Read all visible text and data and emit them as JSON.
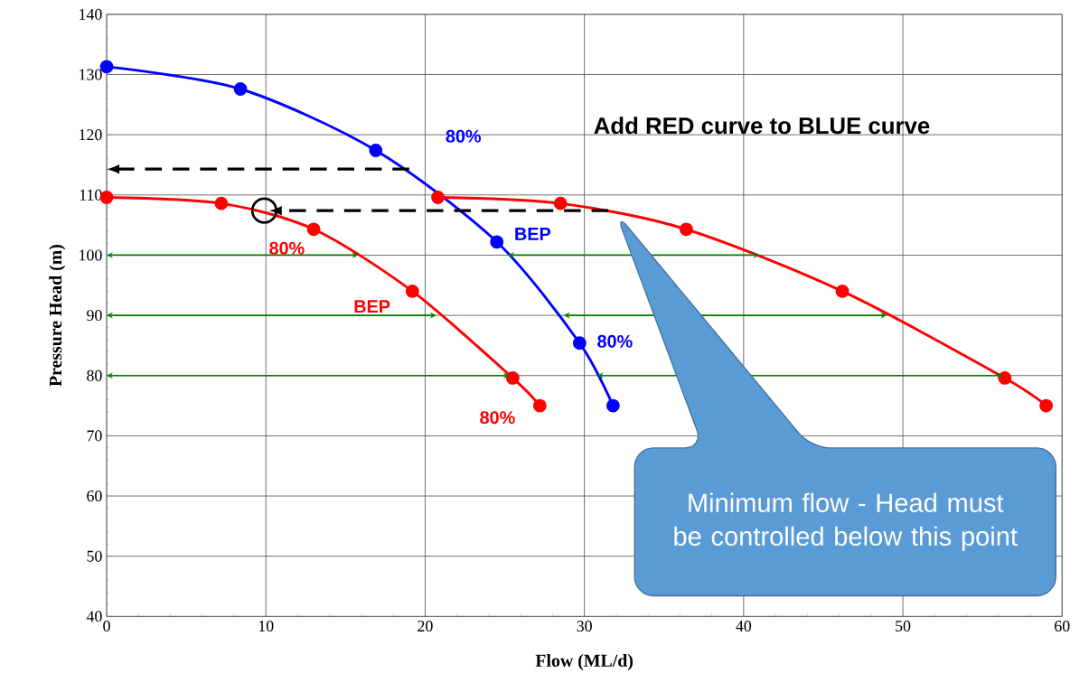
{
  "chart_data": {
    "type": "line",
    "xlabel": "Flow (ML/d)",
    "ylabel": "Pressure Head (m)",
    "xlim": [
      0,
      60
    ],
    "ylim": [
      40,
      140
    ],
    "xticks": [
      0,
      10,
      20,
      30,
      40,
      50,
      60
    ],
    "yticks": [
      40,
      50,
      60,
      70,
      80,
      90,
      100,
      110,
      120,
      130,
      140
    ],
    "grid": true,
    "legend": false,
    "marker": "circle",
    "line_style": "solid",
    "series": [
      {
        "color": "#0000ff",
        "x": [
          0,
          8.4,
          16.9,
          24.5,
          29.7,
          31.8
        ],
        "values": [
          131.3,
          127.6,
          117.4,
          102.2,
          85.4,
          75.0
        ]
      },
      {
        "color": "#ff0000",
        "x": [
          0,
          7.2,
          13.0,
          19.2,
          25.5,
          27.2
        ],
        "values": [
          109.6,
          108.6,
          104.3,
          94.0,
          79.6,
          75.0
        ]
      },
      {
        "color": "#ff0000",
        "x": [
          20.8,
          28.5,
          36.4,
          46.2,
          56.4,
          59.0
        ],
        "values": [
          109.6,
          108.6,
          104.3,
          94.0,
          79.6,
          75.0
        ]
      }
    ],
    "annotations": [
      "80%",
      {
        "text": "BEP",
        "x": 24.5,
        "y": 102.2
      },
      "80%",
      "80%",
      "BEP",
      "80%",
      "Add RED curve to BLUE curve",
      "Minimum flow - Head must be controlled below this point"
    ]
  }
}
